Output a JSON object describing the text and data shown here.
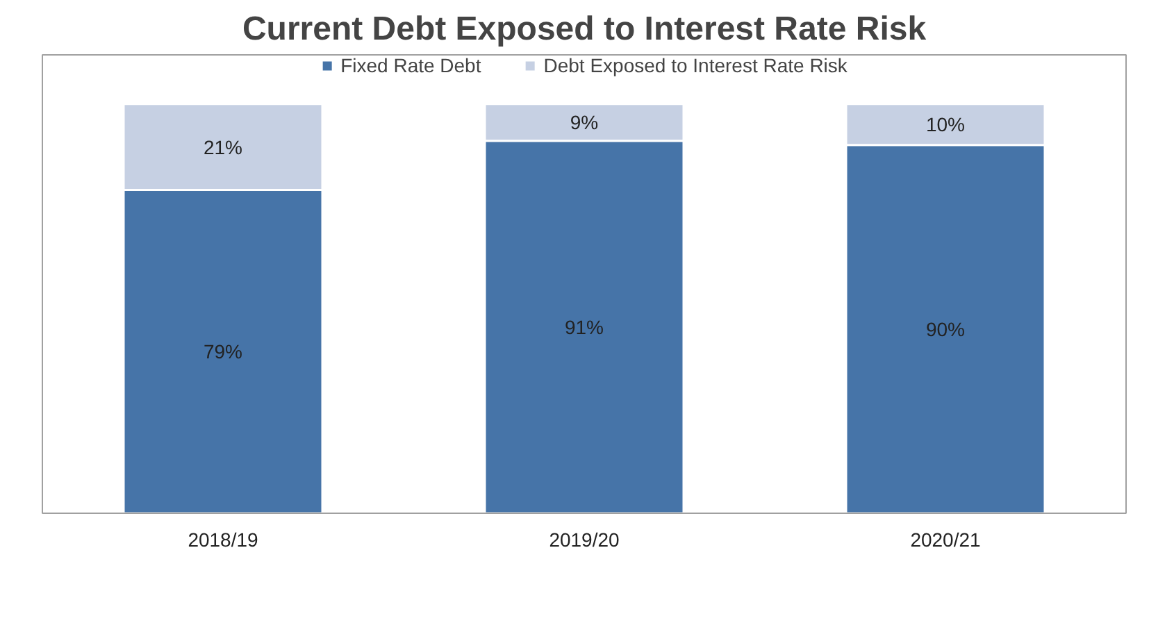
{
  "chart_data": {
    "type": "bar",
    "title": "Current Debt Exposed to Interest Rate Risk",
    "categories": [
      "2018/19",
      "2019/20",
      "2020/21"
    ],
    "stacked": true,
    "ylim": [
      0,
      112
    ],
    "tick_labels": "x",
    "legend": "top",
    "grid": false,
    "series": [
      {
        "name": "Fixed Rate Debt",
        "color": "#4674a8",
        "values": [
          79,
          91,
          90
        ],
        "value_labels": [
          "79%",
          "91%",
          "90%"
        ]
      },
      {
        "name": "Debt Exposed to Interest Rate Risk",
        "color": "#c6d0e3",
        "values": [
          21,
          9,
          10
        ],
        "value_labels": [
          "21%",
          "9%",
          "10%"
        ]
      }
    ]
  }
}
